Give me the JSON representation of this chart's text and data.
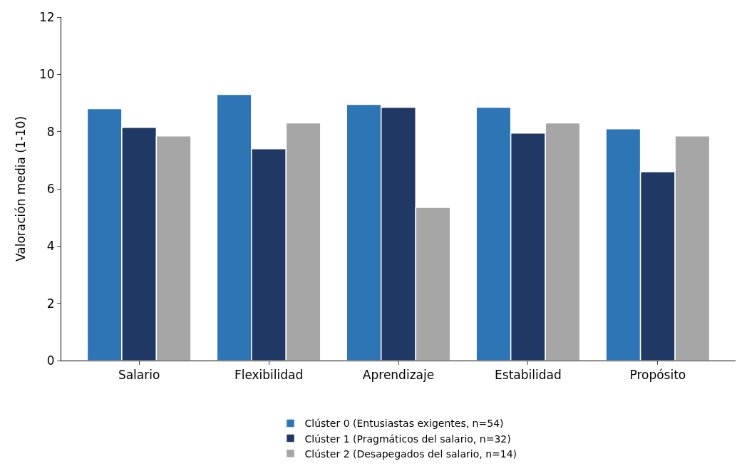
{
  "chart_data": {
    "type": "bar",
    "ylabel": "Valoración media (1-10)",
    "categories": [
      "Salario",
      "Flexibilidad",
      "Aprendizaje",
      "Estabilidad",
      "Propósito"
    ],
    "series": [
      {
        "name": "Clúster 0 (Entusiastas exigentes, n=54)",
        "color": "#2e75b6",
        "values": [
          8.8,
          9.3,
          8.95,
          8.85,
          8.1
        ]
      },
      {
        "name": "Clúster 1 (Pragmáticos del salario, n=32)",
        "color": "#203864",
        "values": [
          8.15,
          7.4,
          8.85,
          7.95,
          6.6
        ]
      },
      {
        "name": "Clúster 2 (Desapegados del salario, n=14)",
        "color": "#a6a6a6",
        "values": [
          7.85,
          8.3,
          5.35,
          8.3,
          7.85
        ]
      }
    ],
    "ylim": [
      0,
      12
    ],
    "yticks": [
      0,
      2,
      4,
      6,
      8,
      10,
      12
    ],
    "grid": false,
    "legend": "bottom"
  }
}
